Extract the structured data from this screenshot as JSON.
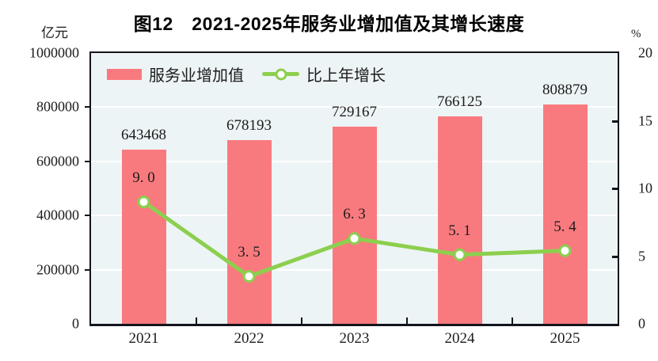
{
  "figure": {
    "title": "图12　2021-2025年服务业增加值及其增长速度",
    "left_unit": "亿元",
    "right_unit": "%"
  },
  "legend": {
    "items": [
      {
        "label": "服务业增加值",
        "type": "bar"
      },
      {
        "label": "比上年增长",
        "type": "line"
      }
    ]
  },
  "chart_data": {
    "type": "bar",
    "subtype": "bar+line combo",
    "title": "图12　2021-2025年服务业增加值及其增长速度",
    "categories": [
      "2021",
      "2022",
      "2023",
      "2024",
      "2025"
    ],
    "series": [
      {
        "name": "服务业增加值",
        "type": "bar",
        "axis": "left",
        "values": [
          643468,
          678193,
          729167,
          766125,
          808879
        ],
        "color": "#F97A7E"
      },
      {
        "name": "比上年增长",
        "type": "line",
        "axis": "right",
        "values": [
          9.0,
          3.5,
          6.3,
          5.1,
          5.4
        ],
        "labels": [
          "9. 0",
          "3. 5",
          "6. 3",
          "5. 1",
          "5. 4"
        ],
        "color": "#8CCF4E",
        "marker": "circle-white-fill"
      }
    ],
    "left_axis": {
      "label": "亿元",
      "min": 0,
      "max": 1000000,
      "ticks": [
        "0",
        "200000",
        "400000",
        "600000",
        "800000",
        "1000000"
      ]
    },
    "right_axis": {
      "label": "%",
      "min": 0,
      "max": 20,
      "ticks": [
        "0",
        "5",
        "10",
        "15",
        "20"
      ]
    },
    "grid": true,
    "legend_position": "top-left-inside",
    "plot_bg": "#EDF4F6",
    "frame_color": "#14141c"
  }
}
